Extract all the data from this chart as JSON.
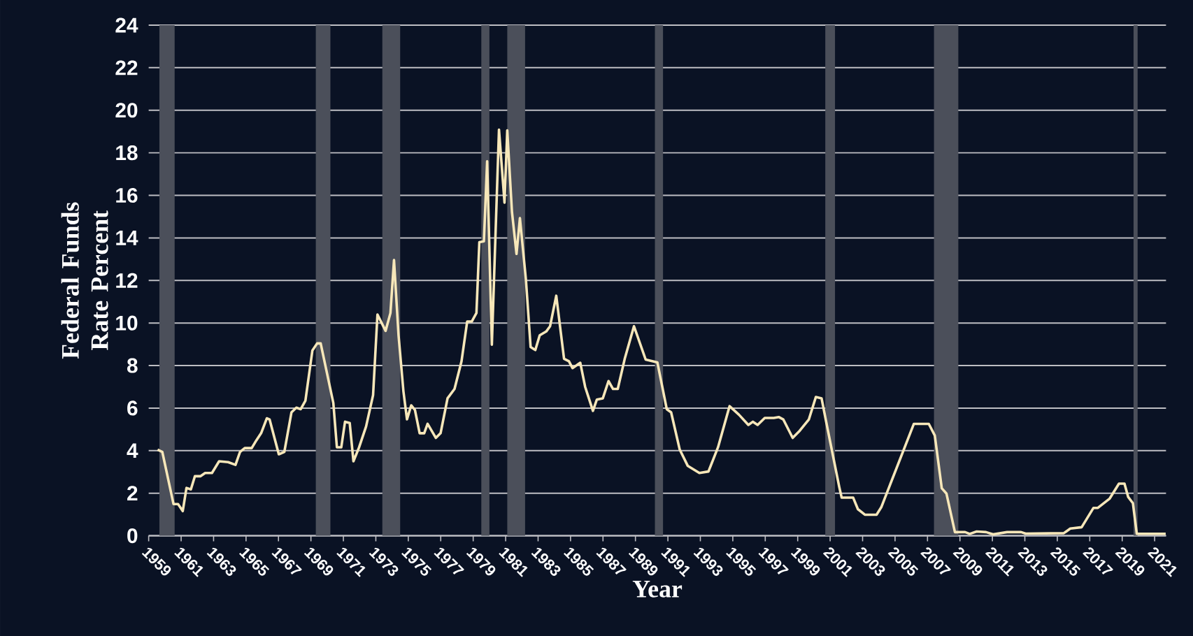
{
  "chart_data": {
    "type": "line",
    "xlabel": "Year",
    "ylabel": "Federal Funds Rate Percent",
    "x": [
      1959.55,
      1959.84,
      1960.53,
      1960.81,
      1961.1,
      1961.33,
      1961.6,
      1961.85,
      1962.2,
      1962.48,
      1962.9,
      1963.34,
      1963.9,
      1964.35,
      1964.63,
      1964.92,
      1965.35,
      1965.64,
      1965.93,
      1966.28,
      1966.45,
      1967.02,
      1967.36,
      1967.8,
      1968.1,
      1968.37,
      1968.66,
      1969.09,
      1969.38,
      1969.6,
      1970.38,
      1970.6,
      1970.87,
      1971.1,
      1971.39,
      1971.62,
      1971.97,
      1972.4,
      1972.83,
      1973.1,
      1973.6,
      1973.9,
      1974.12,
      1974.4,
      1974.7,
      1974.92,
      1975.18,
      1975.41,
      1975.7,
      1975.98,
      1976.19,
      1976.7,
      1976.99,
      1977.42,
      1977.85,
      1978.28,
      1978.63,
      1978.91,
      1979.2,
      1979.38,
      1979.66,
      1979.86,
      1980.15,
      1980.59,
      1980.93,
      1981.1,
      1981.39,
      1981.67,
      1981.88,
      1982.25,
      1982.54,
      1982.83,
      1983.1,
      1983.5,
      1983.74,
      1984.12,
      1984.6,
      1984.9,
      1985.12,
      1985.6,
      1985.9,
      1986.38,
      1986.62,
      1986.99,
      1987.34,
      1987.62,
      1987.91,
      1988.34,
      1988.91,
      1989.63,
      1990.35,
      1990.93,
      1991.2,
      1991.73,
      1992.22,
      1992.94,
      1993.5,
      1994.09,
      1994.8,
      1995.38,
      1995.96,
      1996.24,
      1996.53,
      1996.97,
      1997.53,
      1997.83,
      1998.11,
      1998.69,
      1999.12,
      1999.69,
      2000.12,
      2000.47,
      2000.84,
      2001.56,
      2001.71,
      2002.42,
      2002.71,
      2003.14,
      2003.86,
      2004.15,
      2006.16,
      2007.08,
      2007.45,
      2007.88,
      2008.17,
      2008.69,
      2009.32,
      2009.6,
      2010.03,
      2010.61,
      2011.04,
      2011.9,
      2012.77,
      2013.05,
      2015.4,
      2015.8,
      2016.5,
      2017.23,
      2017.5,
      2018.23,
      2018.8,
      2019.14,
      2019.37,
      2019.66,
      2019.9,
      2021.68
    ],
    "series": [
      {
        "color": "#f7e7b9",
        "values": [
          4.05,
          3.94,
          1.49,
          1.49,
          1.16,
          2.25,
          2.18,
          2.8,
          2.8,
          2.95,
          2.95,
          3.5,
          3.46,
          3.33,
          3.94,
          4.12,
          4.12,
          4.49,
          4.82,
          5.52,
          5.47,
          3.83,
          3.94,
          5.8,
          6.02,
          5.95,
          6.35,
          8.71,
          9.04,
          9.04,
          6.24,
          4.16,
          4.16,
          5.36,
          5.3,
          3.5,
          4.16,
          5.14,
          6.61,
          10.4,
          9.63,
          10.47,
          12.96,
          9.42,
          6.79,
          5.47,
          6.13,
          5.91,
          4.82,
          4.82,
          5.26,
          4.6,
          4.82,
          6.46,
          6.9,
          8.2,
          10.07,
          10.07,
          10.47,
          13.8,
          13.84,
          17.6,
          8.98,
          19.09,
          15.66,
          19.05,
          15.22,
          13.25,
          14.93,
          12.04,
          8.87,
          8.73,
          9.42,
          9.6,
          9.85,
          11.28,
          8.32,
          8.2,
          7.88,
          8.13,
          7.0,
          5.87,
          6.4,
          6.46,
          7.27,
          6.9,
          6.9,
          8.32,
          9.85,
          8.28,
          8.15,
          5.95,
          5.8,
          4.05,
          3.29,
          2.95,
          3.02,
          4.16,
          6.09,
          5.69,
          5.21,
          5.36,
          5.21,
          5.54,
          5.54,
          5.58,
          5.47,
          4.6,
          4.93,
          5.47,
          6.52,
          6.46,
          5.03,
          2.3,
          1.79,
          1.79,
          1.25,
          0.99,
          0.99,
          1.34,
          5.26,
          5.26,
          4.71,
          2.23,
          1.98,
          0.17,
          0.17,
          0.09,
          0.2,
          0.17,
          0.07,
          0.17,
          0.17,
          0.1,
          0.12,
          0.34,
          0.4,
          1.31,
          1.31,
          1.75,
          2.45,
          2.45,
          1.82,
          1.53,
          0.09,
          0.09
        ]
      }
    ],
    "xlim": [
      1959,
      2021.7
    ],
    "ylim": [
      0,
      24
    ],
    "xticks": [
      1959,
      1961,
      1963,
      1965,
      1967,
      1969,
      1971,
      1973,
      1975,
      1977,
      1979,
      1981,
      1983,
      1985,
      1987,
      1989,
      1991,
      1993,
      1995,
      1997,
      1999,
      2001,
      2003,
      2005,
      2007,
      2009,
      2011,
      2013,
      2015,
      2017,
      2019,
      2021
    ],
    "yticks": [
      0,
      2,
      4,
      6,
      8,
      10,
      12,
      14,
      16,
      18,
      20,
      22,
      24
    ],
    "grid": "y",
    "line_style": "solid",
    "bands": [
      {
        "axis": "x",
        "from": 1959.66,
        "to": 1960.6,
        "color": "#4b4f5a"
      },
      {
        "axis": "x",
        "from": 1969.3,
        "to": 1970.2,
        "color": "#4b4f5a"
      },
      {
        "axis": "x",
        "from": 1973.4,
        "to": 1974.5,
        "color": "#4b4f5a"
      },
      {
        "axis": "x",
        "from": 1979.5,
        "to": 1980.0,
        "color": "#4b4f5a"
      },
      {
        "axis": "x",
        "from": 1981.1,
        "to": 1982.2,
        "color": "#4b4f5a"
      },
      {
        "axis": "x",
        "from": 1990.2,
        "to": 1990.7,
        "color": "#4b4f5a"
      },
      {
        "axis": "x",
        "from": 2000.7,
        "to": 2001.3,
        "color": "#4b4f5a"
      },
      {
        "axis": "x",
        "from": 2007.4,
        "to": 2008.9,
        "color": "#4b4f5a"
      },
      {
        "axis": "x",
        "from": 2019.7,
        "to": 2019.95,
        "color": "#4b4f5a"
      }
    ]
  }
}
